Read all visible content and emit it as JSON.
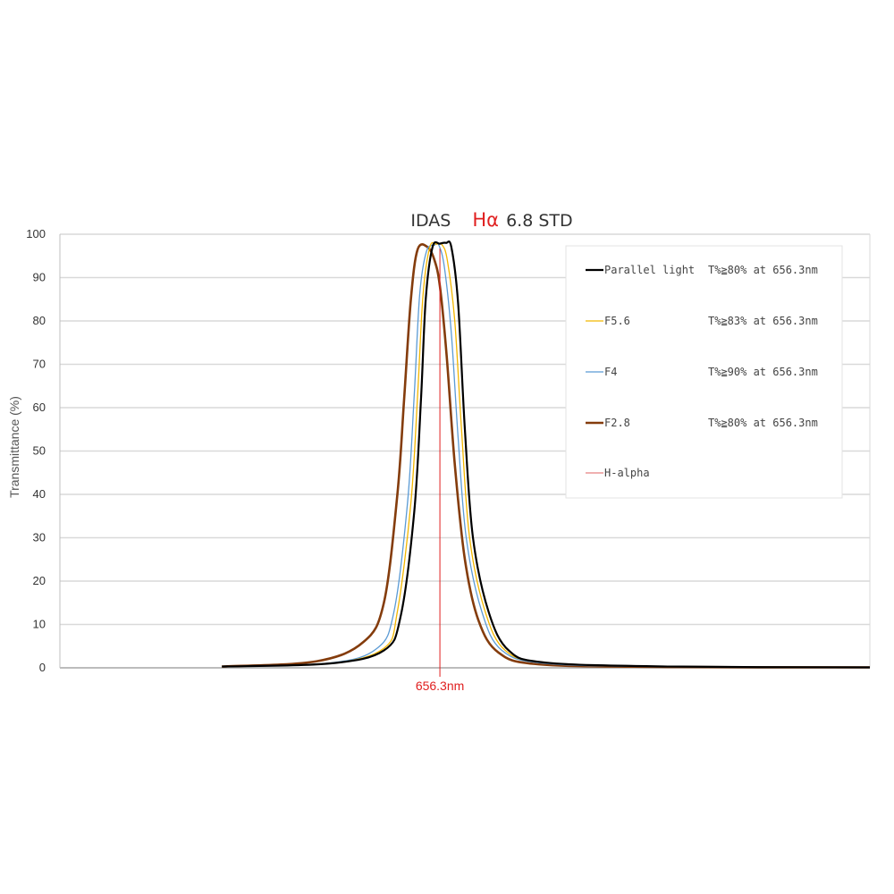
{
  "chart_data": {
    "type": "line",
    "title": {
      "prefix": "IDAS",
      "highlight": "Hα",
      "suffix": "6.8 STD",
      "highlight_color": "#e02020"
    },
    "ylabel": "Transmittance (%)",
    "xlabel": "",
    "ylim": [
      0,
      100
    ],
    "yticks": [
      0,
      10,
      20,
      30,
      40,
      50,
      60,
      70,
      80,
      90,
      100
    ],
    "xlim": [
      600,
      720
    ],
    "grid": true,
    "legend": "top-right",
    "marker": {
      "x": 656.3,
      "label": "656.3nm",
      "color": "#e02020"
    },
    "series": [
      {
        "name": "Parallel light",
        "note": "T%≧80% at 656.3nm",
        "color": "#000000",
        "x": [
          624,
          640,
          648,
          650.5,
          652.5,
          653.5,
          654.2,
          655.2,
          656.3,
          657.2,
          658.0,
          659.0,
          660.0,
          661.2,
          663.5,
          666.5,
          672.0,
          690,
          720
        ],
        "y": [
          0.3,
          1.0,
          4.0,
          12.0,
          36.0,
          62.0,
          85.0,
          97.0,
          97.8,
          98.0,
          97.0,
          84.0,
          55.0,
          30.0,
          13.0,
          4.0,
          1.2,
          0.3,
          0.1
        ]
      },
      {
        "name": "F5.6",
        "note": "T%≧83% at 656.3nm",
        "color": "#f2b600",
        "x": [
          624,
          640,
          648,
          650.0,
          652.0,
          653.0,
          653.8,
          654.8,
          655.8,
          656.6,
          657.4,
          658.5,
          659.5,
          660.7,
          663.0,
          666.0,
          672.0,
          690,
          720
        ],
        "y": [
          0.3,
          1.0,
          4.5,
          13.0,
          38.0,
          63.0,
          86.0,
          97.0,
          97.7,
          97.6,
          94.0,
          80.0,
          55.0,
          30.0,
          13.0,
          4.0,
          1.2,
          0.3,
          0.1
        ]
      },
      {
        "name": "F4",
        "note": "T%≧90% at 656.3nm",
        "color": "#5b9bd5",
        "x": [
          624,
          640,
          647,
          649.5,
          651.5,
          652.5,
          653.3,
          654.3,
          655.5,
          656.2,
          657.0,
          658.0,
          659.0,
          660.2,
          662.5,
          665.5,
          672.0,
          690,
          720
        ],
        "y": [
          0.3,
          1.1,
          4.5,
          13.0,
          38.0,
          63.0,
          86.0,
          96.0,
          97.5,
          97.3,
          92.0,
          77.0,
          53.0,
          30.0,
          13.0,
          4.0,
          1.0,
          0.3,
          0.1
        ]
      },
      {
        "name": "F2.8",
        "note": "T%≧80% at 656.3nm",
        "color": "#843c0c",
        "x": [
          624,
          638,
          645,
          648.0,
          650.0,
          651.0,
          652.0,
          653.0,
          654.5,
          655.5,
          656.3,
          657.3,
          658.5,
          660.0,
          662.0,
          665.0,
          671.0,
          690,
          720
        ],
        "y": [
          0.3,
          1.5,
          6.0,
          15.0,
          40.0,
          62.0,
          85.0,
          96.5,
          97.0,
          94.0,
          88.0,
          72.0,
          47.0,
          25.0,
          11.0,
          3.5,
          0.8,
          0.2,
          0.1
        ]
      },
      {
        "name": "H-alpha",
        "note": "",
        "color": "#e06060"
      }
    ]
  }
}
